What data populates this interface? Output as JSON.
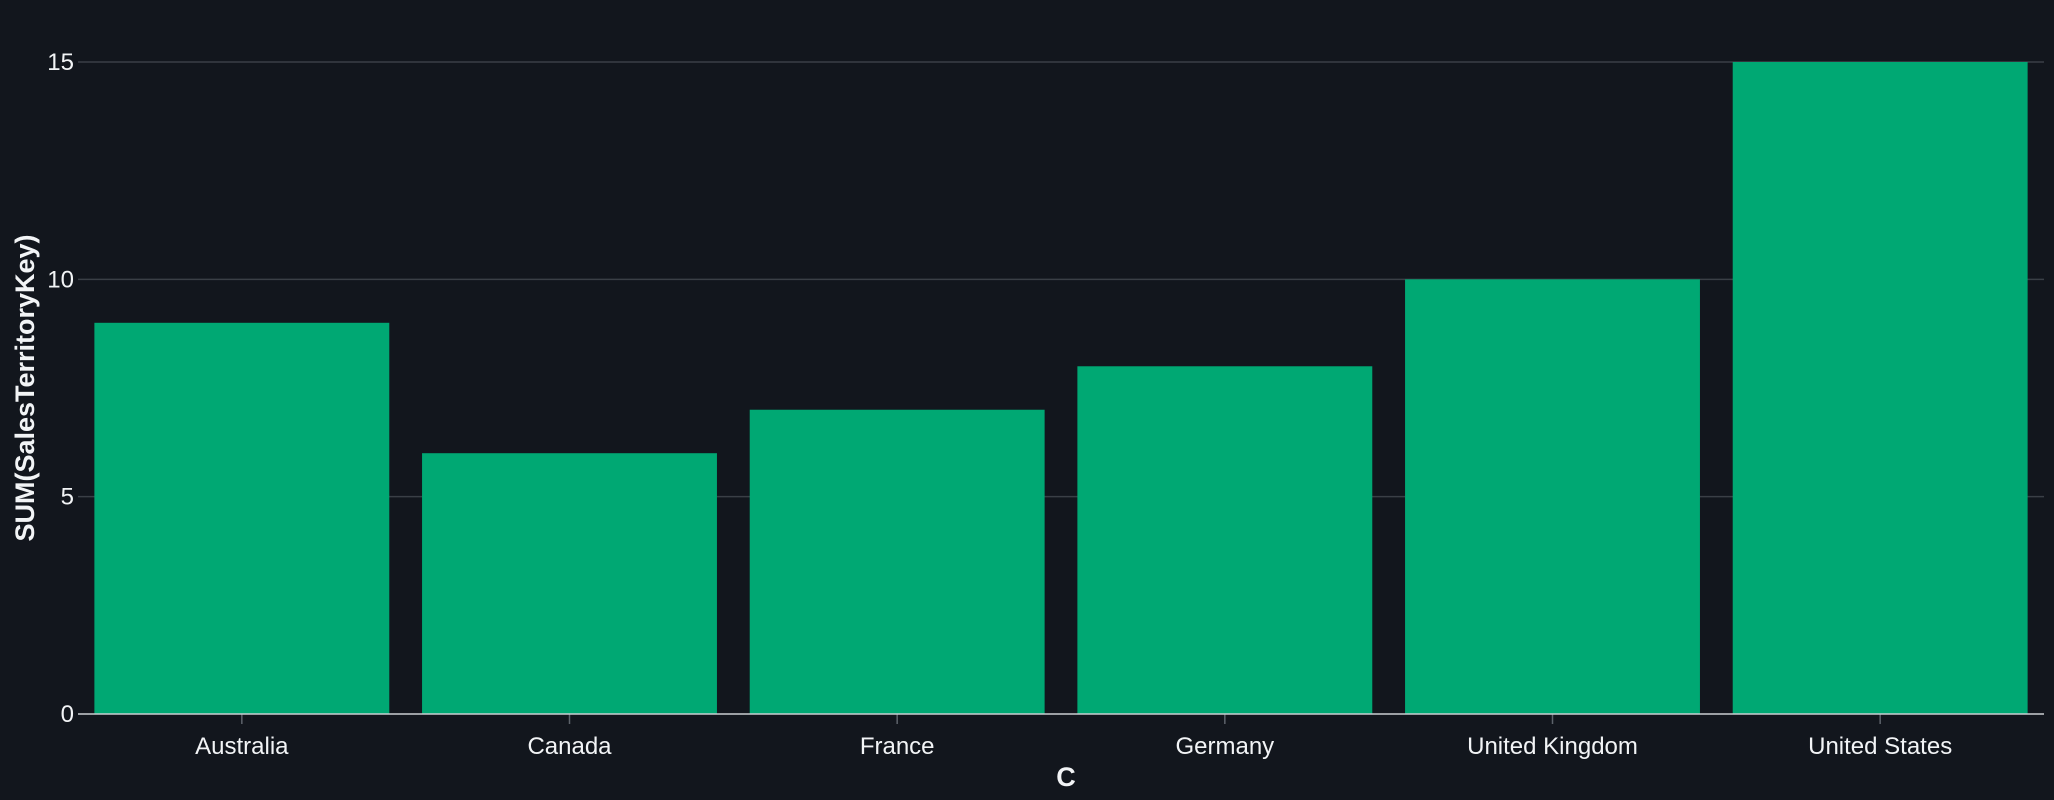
{
  "chart_data": {
    "type": "bar",
    "categories": [
      "Australia",
      "Canada",
      "France",
      "Germany",
      "United Kingdom",
      "United States"
    ],
    "values": [
      9,
      6,
      7,
      8,
      10,
      15
    ],
    "xlabel": "C",
    "ylabel": "SUM(SalesTerritoryKey)",
    "ylim": [
      0,
      15
    ],
    "yticks": [
      0,
      5,
      10,
      15
    ],
    "grid": true,
    "legend": "none",
    "colors": {
      "bar": "#00a873",
      "background": "#12161d",
      "grid": "#3a3f46",
      "text": "#f2f4f6"
    }
  }
}
